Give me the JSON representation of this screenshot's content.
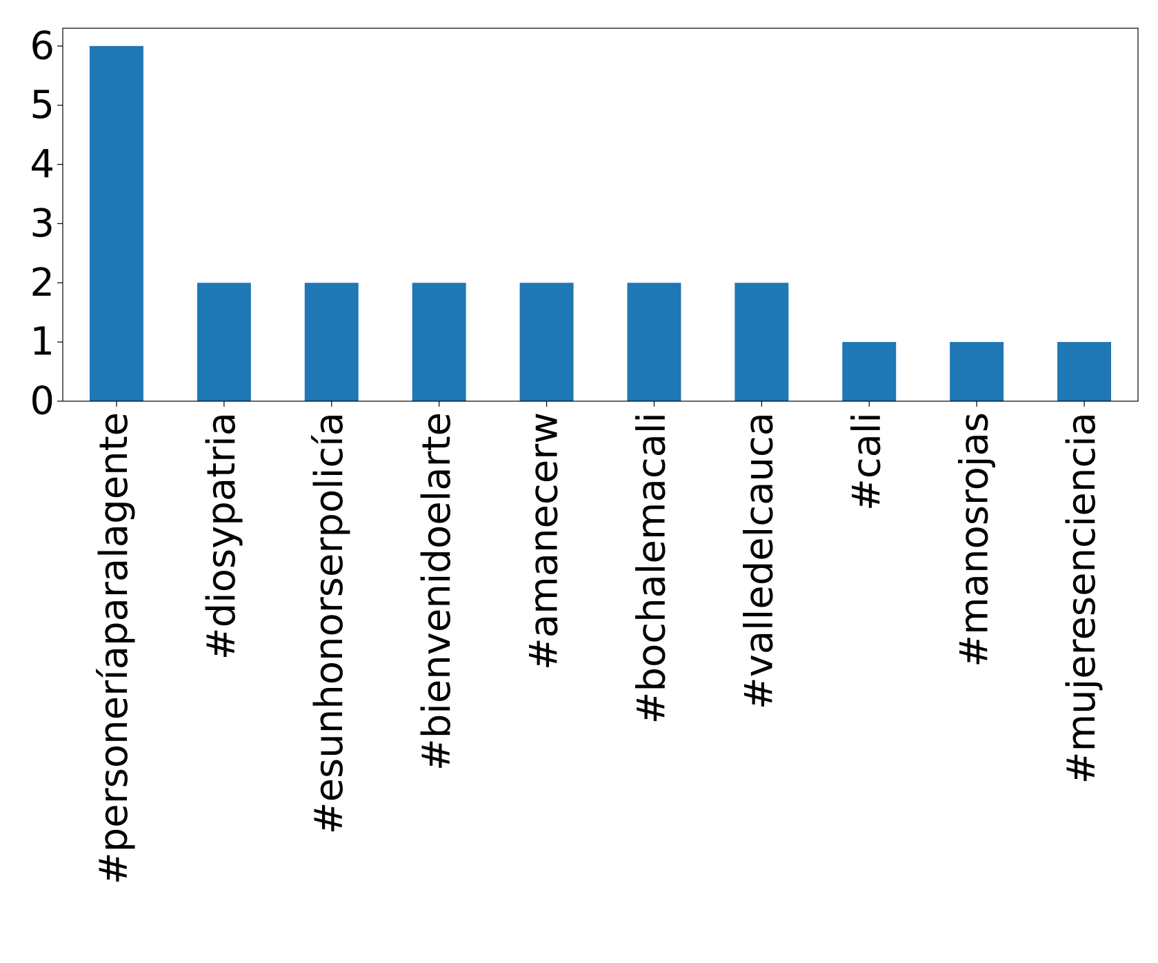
{
  "chart_data": {
    "type": "bar",
    "title": "",
    "xlabel": "",
    "ylabel": "",
    "categories": [
      "#personeríaparalagente",
      "#diosypatria",
      "#esunhonorserpolicía",
      "#bienvenidoelarte",
      "#amanecerw",
      "#bochalemacali",
      "#valledelcauca",
      "#cali",
      "#manosrojas",
      "#mujeresenciencia"
    ],
    "values": [
      6,
      2,
      2,
      2,
      2,
      2,
      2,
      1,
      1,
      1
    ],
    "ylim": [
      0,
      6.3
    ],
    "yticks": [
      0,
      1,
      2,
      3,
      4,
      5,
      6
    ],
    "bar_color": "#1f77b4",
    "grid": false,
    "legend": "none"
  }
}
